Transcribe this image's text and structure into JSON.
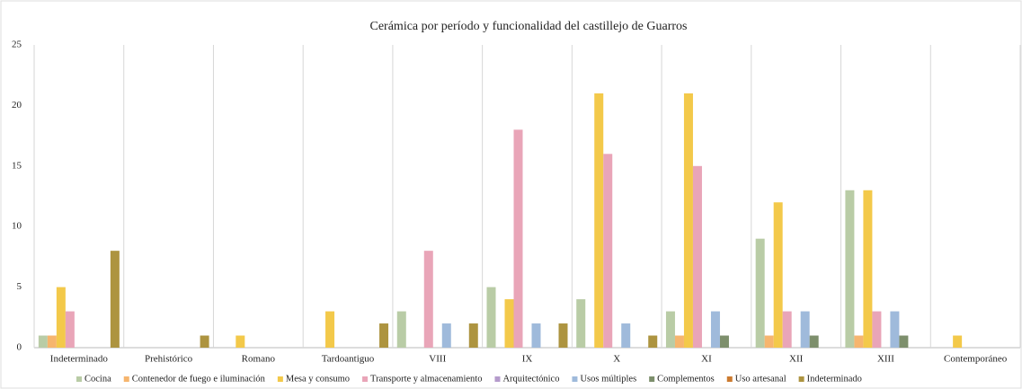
{
  "chart_data": {
    "type": "bar",
    "title": "Cerámica por período y funcionalidad del castillejo de Guarros",
    "categories": [
      "Indeterminado",
      "Prehistórico",
      "Romano",
      "Tardoantiguo",
      "VIII",
      "IX",
      "X",
      "XI",
      "XII",
      "XIII",
      "Contemporáneo"
    ],
    "series": [
      {
        "name": "Cocina",
        "color": "#b9cca6",
        "values": [
          1,
          0,
          0,
          0,
          3,
          5,
          4,
          3,
          9,
          13,
          0
        ]
      },
      {
        "name": "Contenedor de fuego e iluminación",
        "color": "#f6b56e",
        "values": [
          1,
          0,
          0,
          0,
          0,
          0,
          0,
          1,
          1,
          1,
          0
        ]
      },
      {
        "name": "Mesa y consumo",
        "color": "#f3c94a",
        "values": [
          5,
          0,
          1,
          3,
          0,
          4,
          21,
          21,
          12,
          13,
          1
        ]
      },
      {
        "name": "Transporte y almacenamiento",
        "color": "#e9a5b8",
        "values": [
          3,
          0,
          0,
          0,
          8,
          18,
          16,
          15,
          3,
          3,
          0
        ]
      },
      {
        "name": "Arquitectónico",
        "color": "#b59bcc",
        "values": [
          0,
          0,
          0,
          0,
          0,
          0,
          0,
          0,
          0,
          0,
          0
        ]
      },
      {
        "name": "Usos múltiples",
        "color": "#9fbadb",
        "values": [
          0,
          0,
          0,
          0,
          2,
          2,
          2,
          3,
          3,
          3,
          0
        ]
      },
      {
        "name": "Complementos",
        "color": "#7d8f6c",
        "values": [
          0,
          0,
          0,
          0,
          0,
          0,
          0,
          1,
          1,
          1,
          0
        ]
      },
      {
        "name": "Uso artesanal",
        "color": "#cc7b30",
        "values": [
          0,
          0,
          0,
          0,
          0,
          0,
          0,
          0,
          0,
          0,
          0
        ]
      },
      {
        "name": "Indeterminado",
        "color": "#ad9440",
        "values": [
          8,
          1,
          0,
          2,
          2,
          2,
          1,
          0,
          0,
          0,
          0
        ]
      }
    ],
    "ylim": [
      0,
      25
    ],
    "yticks": [
      0,
      5,
      10,
      15,
      20,
      25
    ],
    "grid": true,
    "legend": "bottom"
  }
}
